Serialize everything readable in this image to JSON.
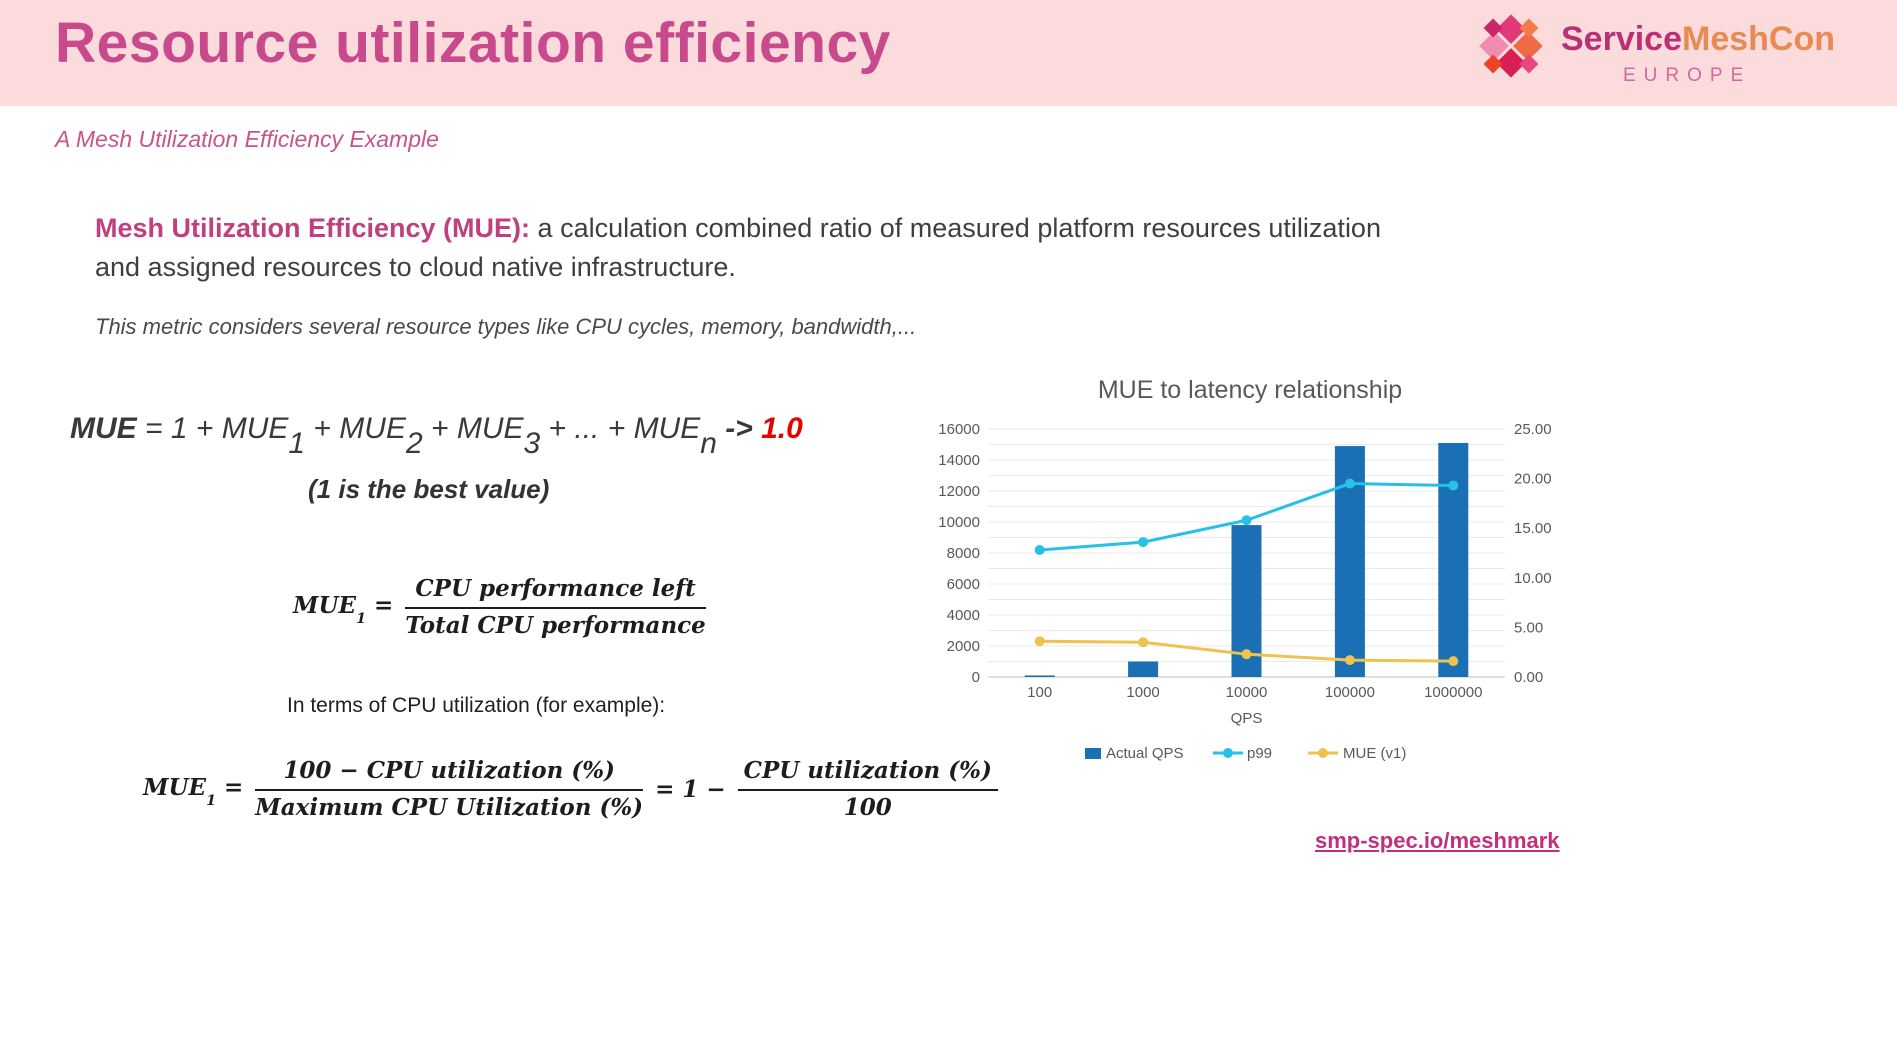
{
  "header": {
    "title": "Resource utilization efficiency",
    "logo": {
      "brand_part1": "Service",
      "brand_part2": "MeshCon",
      "region": "EUROPE"
    }
  },
  "subtitle": "A Mesh Utilization Efficiency Example",
  "intro": {
    "lead": "Mesh Utilization Efficiency (MUE):",
    "body": " a calculation combined ratio of measured platform resources utilization and assigned resources to cloud native infrastructure."
  },
  "note": "This metric considers several resource types like CPU cycles, memory, bandwidth,...",
  "formula_sum": {
    "lhs": "MUE",
    "eq1": " = 1 + MUE",
    "sub1": "1",
    "p2": " + MUE",
    "sub2": "2",
    "p3": " + MUE",
    "sub3": "3",
    "p4": " + ... + MUE",
    "subn": "n",
    "arrow": " -> ",
    "target": "1.0",
    "caption": "(1 is the best value)"
  },
  "formula_mue1": {
    "lhs": "MUE",
    "lhs_sub": "1",
    "eq": "=",
    "num": "CPU performance left",
    "den": "Total CPU performance"
  },
  "cpu_note": "In terms of CPU utilization (for example):",
  "formula_cpu": {
    "lhs": "MUE",
    "lhs_sub": "1",
    "eq1": "=",
    "num1": "100 − CPU utilization (%)",
    "den1": "Maximum CPU Utilization (%)",
    "eq2": "= 1 −",
    "num2": "CPU utilization (%)",
    "den2": "100"
  },
  "chart_data": {
    "type": "combo-bar-line",
    "title": "MUE to latency relationship",
    "categories": [
      "100",
      "1000",
      "10000",
      "100000",
      "1000000"
    ],
    "xlabel": "QPS",
    "grid": true,
    "legend_position": "bottom",
    "left_axis": {
      "min": 0,
      "max": 16000,
      "ticks": [
        0,
        2000,
        4000,
        6000,
        8000,
        10000,
        12000,
        14000,
        16000
      ],
      "minor_grid_step": 1000
    },
    "right_axis": {
      "min": 0,
      "max": 25,
      "ticks": [
        0,
        5,
        10,
        15,
        20,
        25
      ],
      "tick_labels": [
        "0.00",
        "5.00",
        "10.00",
        "15.00",
        "20.00",
        "25.00"
      ]
    },
    "series": [
      {
        "name": "Actual QPS",
        "type": "bar",
        "axis": "left",
        "color": "#1a6fb5",
        "values": [
          100,
          1000,
          9800,
          14900,
          15100
        ]
      },
      {
        "name": "p99",
        "type": "line",
        "axis": "right",
        "color": "#27c0e6",
        "values": [
          12.8,
          13.6,
          15.8,
          19.5,
          19.3
        ]
      },
      {
        "name": "MUE (v1)",
        "type": "line",
        "axis": "right",
        "color": "#edc24e",
        "values": [
          3.6,
          3.5,
          2.3,
          1.7,
          1.6
        ]
      }
    ]
  },
  "footer": {
    "link": "smp-spec.io/meshmark"
  },
  "colors": {
    "header_background": "#fbdbdb",
    "title_pink": "#c8498c",
    "accent_pink": "#c0407f",
    "highlight_red": "#e80000",
    "link_pink": "#c1307c",
    "chart_text": "#595959"
  }
}
